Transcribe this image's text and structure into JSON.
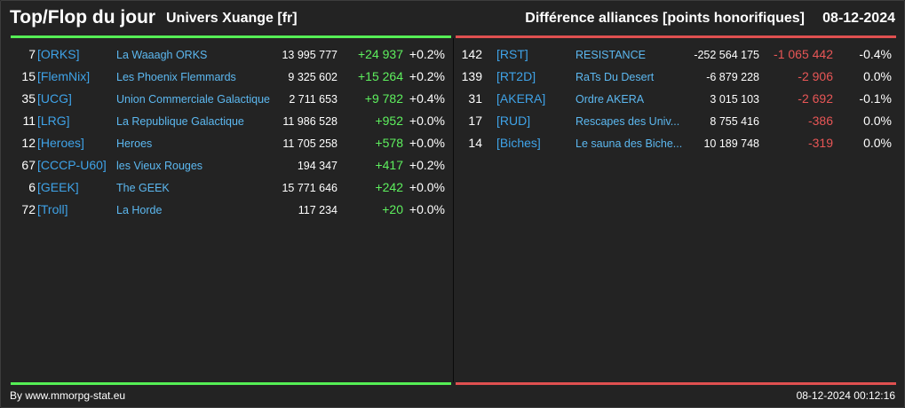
{
  "header": {
    "title": "Top/Flop du jour",
    "universe": "Univers Xuange [fr]",
    "diff_title": "Différence alliances [points honorifiques]",
    "date": "08-12-2024"
  },
  "colors": {
    "top_accent": "#55ee55",
    "flop_accent": "#e05050",
    "tag_color": "#3fa3e8",
    "name_color": "#5cb8f0"
  },
  "top": [
    {
      "rank": "7",
      "tag": "[ORKS]",
      "name": "La Waaagh ORKS",
      "points": "13 995 777",
      "diff": "+24 937",
      "pct": "+0.2%"
    },
    {
      "rank": "15",
      "tag": "[FlemNix]",
      "name": "Les Phoenix Flemmards",
      "points": "9 325 602",
      "diff": "+15 264",
      "pct": "+0.2%"
    },
    {
      "rank": "35",
      "tag": "[UCG]",
      "name": "Union Commerciale Galactique",
      "points": "2 711 653",
      "diff": "+9 782",
      "pct": "+0.4%"
    },
    {
      "rank": "11",
      "tag": "[LRG]",
      "name": "La Republique Galactique",
      "points": "11 986 528",
      "diff": "+952",
      "pct": "+0.0%"
    },
    {
      "rank": "12",
      "tag": "[Heroes]",
      "name": "Heroes",
      "points": "11 705 258",
      "diff": "+578",
      "pct": "+0.0%"
    },
    {
      "rank": "67",
      "tag": "[CCCP-U60]",
      "name": "les Vieux Rouges",
      "points": "194 347",
      "diff": "+417",
      "pct": "+0.2%"
    },
    {
      "rank": "6",
      "tag": "[GEEK]",
      "name": "The GEEK",
      "points": "15 771 646",
      "diff": "+242",
      "pct": "+0.0%"
    },
    {
      "rank": "72",
      "tag": "[Troll]",
      "name": "La Horde",
      "points": "117 234",
      "diff": "+20",
      "pct": "+0.0%"
    }
  ],
  "flop": [
    {
      "rank": "142",
      "tag": "[RST]",
      "name": "RESISTANCE",
      "points": "-252 564 175",
      "diff": "-1 065 442",
      "pct": "-0.4%"
    },
    {
      "rank": "139",
      "tag": "[RT2D]",
      "name": "RaTs Du Desert",
      "points": "-6 879 228",
      "diff": "-2 906",
      "pct": "0.0%"
    },
    {
      "rank": "31",
      "tag": "[AKERA]",
      "name": "Ordre AKERA",
      "points": "3 015 103",
      "diff": "-2 692",
      "pct": "-0.1%"
    },
    {
      "rank": "17",
      "tag": "[RUD]",
      "name": "Rescapes des Univ...",
      "points": "8 755 416",
      "diff": "-386",
      "pct": "0.0%"
    },
    {
      "rank": "14",
      "tag": "[Biches]",
      "name": "Le sauna des Biche...",
      "points": "10 189 748",
      "diff": "-319",
      "pct": "0.0%"
    }
  ],
  "footer": {
    "credit": "By www.mmorpg-stat.eu",
    "timestamp": "08-12-2024 00:12:16"
  }
}
